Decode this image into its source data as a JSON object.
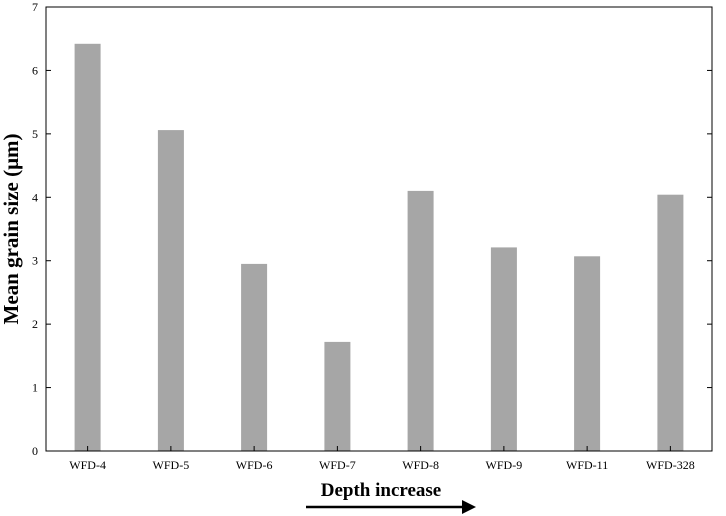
{
  "chart_data": {
    "type": "bar",
    "categories": [
      "WFD-4",
      "WFD-5",
      "WFD-6",
      "WFD-7",
      "WFD-8",
      "WFD-9",
      "WFD-11",
      "WFD-328"
    ],
    "values": [
      6.42,
      5.06,
      2.95,
      1.72,
      4.1,
      3.21,
      3.07,
      4.04
    ],
    "title": "",
    "xlabel": "Depth increase",
    "ylabel": "Mean grain size (μm)",
    "ylim": [
      0,
      7
    ],
    "yticks": [
      "0",
      "1",
      "2",
      "3",
      "4",
      "5",
      "6",
      "7"
    ],
    "grid": false,
    "bar_color": "#a6a6a6",
    "annotations": [
      "arrow-right under x-axis label"
    ]
  }
}
